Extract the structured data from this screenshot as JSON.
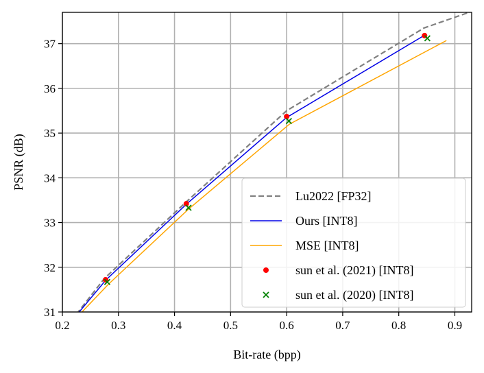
{
  "chart_data": {
    "type": "line",
    "title": "",
    "xlabel": "Bit-rate (bpp)",
    "ylabel": "PSNR (dB)",
    "xlim": [
      0.2,
      0.93
    ],
    "ylim": [
      31,
      37.7
    ],
    "xticks": [
      0.2,
      0.3,
      0.4,
      0.5,
      0.6,
      0.7,
      0.8,
      0.9
    ],
    "xtick_labels": [
      "0.2",
      "0.3",
      "0.4",
      "0.5",
      "0.6",
      "0.7",
      "0.8",
      "0.9"
    ],
    "yticks": [
      31,
      32,
      33,
      34,
      35,
      36,
      37
    ],
    "ytick_labels": [
      "31",
      "32",
      "33",
      "34",
      "35",
      "36",
      "37"
    ],
    "grid": true,
    "legend_position": "bottom-right",
    "series": [
      {
        "name": "Lu2022 [FP32]",
        "kind": "line",
        "style": "dashed",
        "color": "#808080",
        "x": [
          0.225,
          0.275,
          0.42,
          0.6,
          0.845,
          0.93
        ],
        "y": [
          30.95,
          31.75,
          33.45,
          35.5,
          37.35,
          37.72
        ]
      },
      {
        "name": "Ours [INT8]",
        "kind": "line",
        "style": "solid",
        "color": "#0000e6",
        "x": [
          0.23,
          0.278,
          0.422,
          0.6,
          0.845
        ],
        "y": [
          31.0,
          31.72,
          33.42,
          35.35,
          37.18
        ]
      },
      {
        "name": "MSE [INT8]",
        "kind": "line",
        "style": "solid",
        "color": "#ffa500",
        "x": [
          0.235,
          0.282,
          0.425,
          0.605,
          0.885
        ],
        "y": [
          31.0,
          31.62,
          33.3,
          35.2,
          37.07
        ]
      },
      {
        "name": "sun et al. (2021) [INT8]",
        "kind": "scatter",
        "marker": "circle",
        "color": "#ff0000",
        "x": [
          0.277,
          0.421,
          0.6,
          0.846
        ],
        "y": [
          31.72,
          33.42,
          35.37,
          37.18
        ]
      },
      {
        "name": "sun et al. (2020) [INT8]",
        "kind": "scatter",
        "marker": "x",
        "color": "#008000",
        "x": [
          0.28,
          0.425,
          0.604,
          0.851
        ],
        "y": [
          31.67,
          33.33,
          35.27,
          37.12
        ]
      }
    ]
  }
}
